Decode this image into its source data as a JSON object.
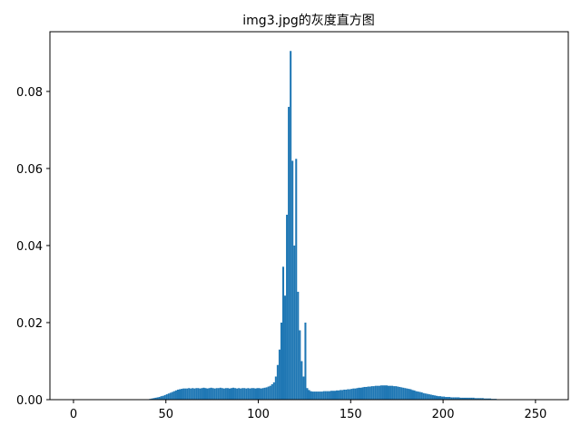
{
  "chart_data": {
    "type": "bar",
    "title": "img3.jpg的灰度直方图",
    "xlabel": "",
    "ylabel": "",
    "xlim": [
      -12.75,
      267.75
    ],
    "ylim": [
      0,
      0.0955
    ],
    "x_ticks": [
      0,
      50,
      100,
      150,
      200,
      250
    ],
    "y_ticks": [
      0.0,
      0.02,
      0.04,
      0.06,
      0.08
    ],
    "y_tick_labels": [
      "0.00",
      "0.02",
      "0.04",
      "0.06",
      "0.08"
    ],
    "grid": false,
    "bar_color": "#1f77b4",
    "bins_start": 0,
    "bin_width": 1,
    "values": [
      0,
      0,
      0,
      0,
      0,
      0,
      0,
      0,
      0,
      0,
      0,
      0,
      0,
      0,
      0,
      0,
      0,
      0,
      0,
      0,
      0,
      0,
      0,
      0,
      0,
      0,
      0,
      0,
      0,
      0,
      0,
      0,
      0,
      0,
      0,
      0,
      0,
      0,
      0,
      0.0001,
      0.0001,
      0.0002,
      0.0003,
      0.0004,
      0.0005,
      0.0006,
      0.0007,
      0.0009,
      0.001,
      0.0012,
      0.0014,
      0.0016,
      0.0018,
      0.002,
      0.0022,
      0.0024,
      0.0026,
      0.0027,
      0.0028,
      0.0029,
      0.0029,
      0.0029,
      0.003,
      0.0029,
      0.003,
      0.0029,
      0.003,
      0.003,
      0.0029,
      0.003,
      0.0031,
      0.003,
      0.0029,
      0.003,
      0.0031,
      0.003,
      0.0029,
      0.003,
      0.003,
      0.0031,
      0.003,
      0.0029,
      0.003,
      0.003,
      0.0029,
      0.003,
      0.0031,
      0.003,
      0.0029,
      0.003,
      0.0029,
      0.003,
      0.003,
      0.0029,
      0.003,
      0.0029,
      0.003,
      0.003,
      0.0029,
      0.003,
      0.003,
      0.0029,
      0.003,
      0.0031,
      0.0032,
      0.0034,
      0.0036,
      0.004,
      0.0045,
      0.006,
      0.009,
      0.013,
      0.02,
      0.0345,
      0.027,
      0.048,
      0.076,
      0.0905,
      0.062,
      0.04,
      0.0625,
      0.028,
      0.018,
      0.01,
      0.006,
      0.02,
      0.003,
      0.0025,
      0.0022,
      0.0021,
      0.0021,
      0.0021,
      0.0021,
      0.0021,
      0.0021,
      0.0022,
      0.0022,
      0.0022,
      0.0022,
      0.0023,
      0.0023,
      0.0023,
      0.0024,
      0.0024,
      0.0025,
      0.0025,
      0.0026,
      0.0026,
      0.0027,
      0.0027,
      0.0028,
      0.0029,
      0.0029,
      0.003,
      0.0031,
      0.0031,
      0.0032,
      0.0033,
      0.0033,
      0.0034,
      0.0034,
      0.0035,
      0.0035,
      0.0036,
      0.0036,
      0.0036,
      0.0037,
      0.0037,
      0.0037,
      0.0037,
      0.0036,
      0.0036,
      0.0036,
      0.0035,
      0.0035,
      0.0034,
      0.0033,
      0.0032,
      0.0031,
      0.003,
      0.0029,
      0.0028,
      0.0027,
      0.0025,
      0.0024,
      0.0022,
      0.0021,
      0.002,
      0.0019,
      0.0017,
      0.0016,
      0.0015,
      0.0014,
      0.0013,
      0.0012,
      0.0011,
      0.001,
      0.0009,
      0.0009,
      0.0008,
      0.0008,
      0.0007,
      0.0007,
      0.0007,
      0.0006,
      0.0006,
      0.0006,
      0.0006,
      0.0006,
      0.0005,
      0.0005,
      0.0005,
      0.0005,
      0.0005,
      0.0005,
      0.0005,
      0.0005,
      0.0004,
      0.0004,
      0.0004,
      0.0004,
      0.0004,
      0.0003,
      0.0003,
      0.0003,
      0.0003,
      0.0002,
      0.0002,
      0.0002,
      0.0001,
      0.0001,
      0.0001,
      0.0001,
      0.0001,
      0.0001,
      0,
      0,
      0,
      0,
      0,
      0,
      0,
      0,
      0,
      0,
      0,
      0,
      0,
      0,
      0,
      0,
      0,
      0,
      0,
      0,
      0
    ]
  }
}
